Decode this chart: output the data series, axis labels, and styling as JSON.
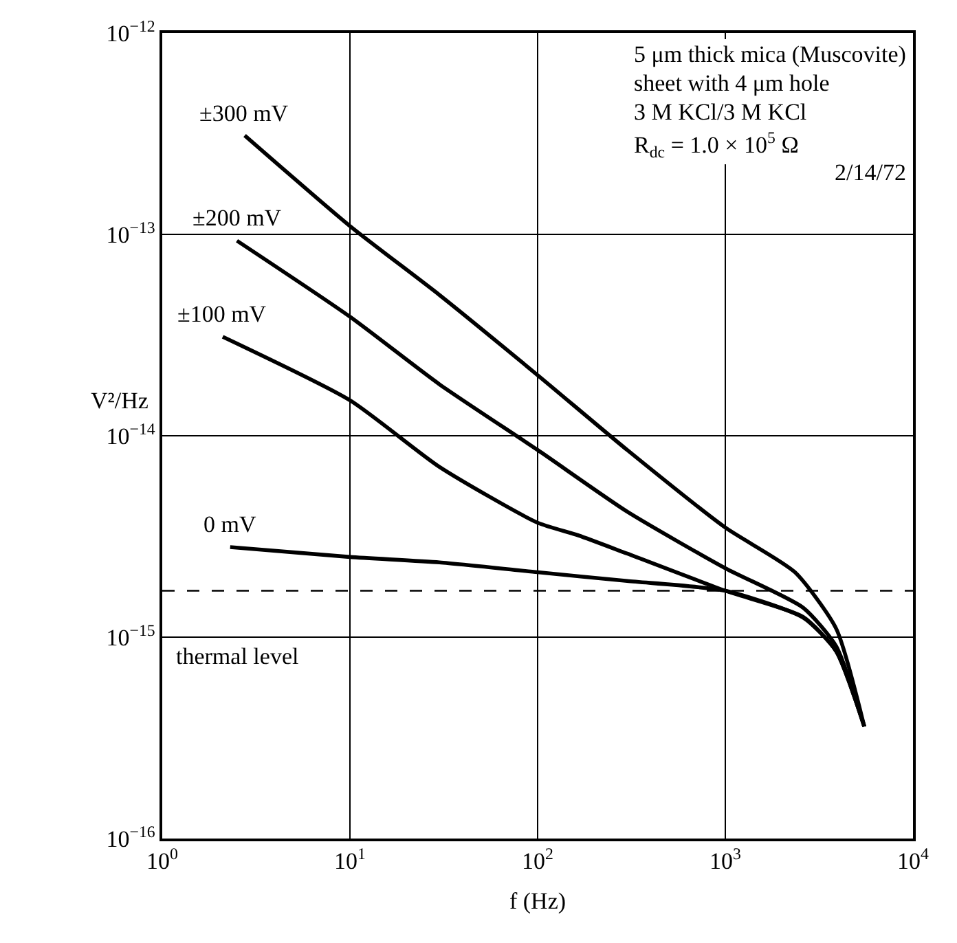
{
  "chart_data": {
    "type": "line",
    "xlabel": "f (Hz)",
    "ylabel": "V²/Hz",
    "log": "xy",
    "grid": true,
    "legend": false,
    "line_style": "solid",
    "marker": "none",
    "xlim": [
      1,
      10000
    ],
    "ylim": [
      1e-16,
      1e-12
    ],
    "xticks": [
      {
        "value": 1,
        "label": "10$^{0}$"
      },
      {
        "value": 10,
        "label": "10$^{1}$"
      },
      {
        "value": 100,
        "label": "10$^{2}$"
      },
      {
        "value": 1000,
        "label": "10$^{3}$"
      },
      {
        "value": 10000,
        "label": "10$^{4}$"
      }
    ],
    "yticks": [
      {
        "value": 1e-16,
        "label": "10$^{−16}$"
      },
      {
        "value": 1e-15,
        "label": "10$^{−15}$"
      },
      {
        "value": 1e-14,
        "label": "10$^{−14}$"
      },
      {
        "value": 1e-13,
        "label": "10$^{−13}$"
      },
      {
        "value": 1e-12,
        "label": "10$^{−12}$"
      }
    ],
    "series": [
      {
        "name": "±300 mV",
        "color": "#000000",
        "x": [
          2.75,
          10,
          30,
          100,
          300,
          1000,
          2350,
          3900,
          5500
        ],
        "values": [
          3.1e-13,
          1.1e-13,
          5e-14,
          2e-14,
          8.5e-15,
          3.5e-15,
          2.1e-15,
          1.1e-15,
          3.6e-16
        ]
      },
      {
        "name": "±200 mV",
        "color": "#000000",
        "x": [
          2.5,
          10,
          30,
          100,
          300,
          1000,
          2600,
          3900,
          5500
        ],
        "values": [
          9.3e-14,
          3.9e-14,
          1.8e-14,
          8.5e-15,
          4.2e-15,
          2.2e-15,
          1.4e-15,
          9e-16,
          3.6e-16
        ]
      },
      {
        "name": "±100 mV",
        "color": "#000000",
        "x": [
          2.1,
          10,
          30,
          100,
          165,
          300,
          1000,
          2600,
          3900,
          5500
        ],
        "values": [
          3.1e-14,
          1.5e-14,
          7e-15,
          3.7e-15,
          3.2e-15,
          2.6e-15,
          1.7e-15,
          1.26e-15,
          8.5e-16,
          3.6e-16
        ]
      },
      {
        "name": "0 mV",
        "color": "#000000",
        "x": [
          2.3,
          10,
          30,
          100,
          300,
          1000,
          2600,
          3900,
          5500
        ],
        "values": [
          2.8e-15,
          2.5e-15,
          2.35e-15,
          2.1e-15,
          1.9e-15,
          1.7e-15,
          1.25e-15,
          8.5e-16,
          3.6e-16
        ]
      }
    ],
    "ref_lines": [
      {
        "axis": "y",
        "value": 1.7e-15,
        "label": "thermal level",
        "color": "#000000",
        "line_style": "dashed"
      }
    ],
    "annotations": [
      "5 μm thick mica (Muscovite)",
      "sheet with 4 μm hole",
      "3 M KCl/3 M KCl",
      "R$_{dc}$ = 1.0 × 10$^{5}$ Ω",
      "2/14/72"
    ]
  }
}
